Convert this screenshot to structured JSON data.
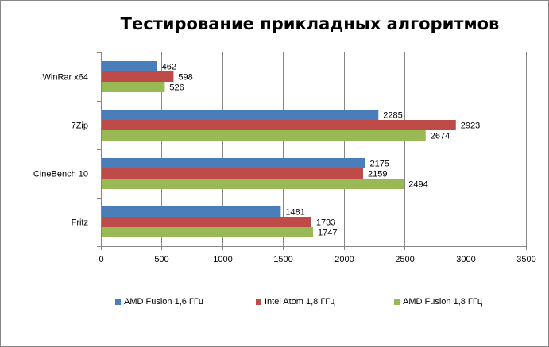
{
  "chart_data": {
    "type": "bar",
    "orientation": "horizontal",
    "title": "Тестирование прикладных алгоритмов",
    "categories": [
      "WinRar x64",
      "7Zip",
      "CineBench 10",
      "Fritz"
    ],
    "series": [
      {
        "name": "AMD Fusion 1,6 ГГц",
        "color": "#4a7ebb",
        "values": [
          462,
          2285,
          2175,
          1481
        ]
      },
      {
        "name": "Intel Atom 1,8 ГГц",
        "color": "#be4b48",
        "values": [
          598,
          2923,
          2159,
          1733
        ]
      },
      {
        "name": "AMD Fusion 1,8 ГГц",
        "color": "#98b954",
        "values": [
          526,
          2674,
          2494,
          1747
        ]
      }
    ],
    "xlim": [
      0,
      3500
    ],
    "xticks": [
      0,
      500,
      1000,
      1500,
      2000,
      2500,
      3000,
      3500
    ],
    "grid": true,
    "legend_position": "bottom"
  }
}
